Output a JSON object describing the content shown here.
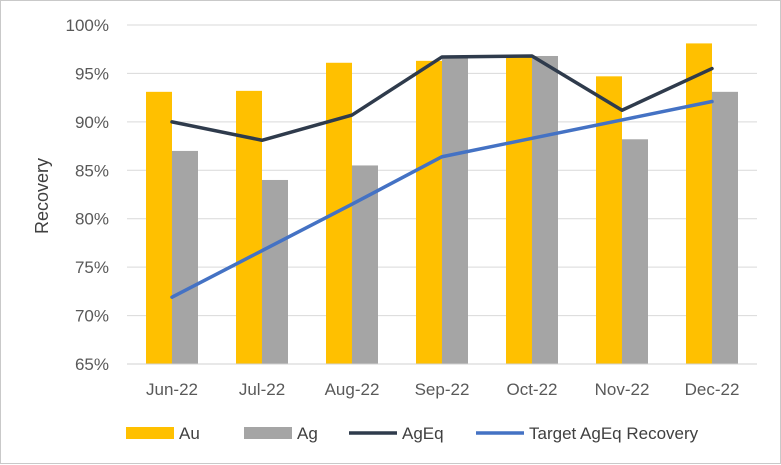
{
  "chart_data": {
    "type": "bar",
    "ylabel": "Recovery",
    "ylim": [
      65,
      100
    ],
    "y_ticks": [
      65,
      70,
      75,
      80,
      85,
      90,
      95,
      100
    ],
    "y_tick_labels": [
      "65%",
      "70%",
      "75%",
      "80%",
      "85%",
      "90%",
      "95%",
      "100%"
    ],
    "categories": [
      "Jun-22",
      "Jul-22",
      "Aug-22",
      "Sep-22",
      "Oct-22",
      "Nov-22",
      "Dec-22"
    ],
    "series": [
      {
        "name": "Au",
        "type": "bar",
        "color": "#FFC000",
        "values": [
          93.1,
          93.2,
          96.1,
          96.3,
          96.8,
          94.7,
          98.1
        ]
      },
      {
        "name": "Ag",
        "type": "bar",
        "color": "#A5A5A5",
        "values": [
          87.0,
          84.0,
          85.5,
          96.6,
          96.8,
          88.2,
          93.1
        ]
      },
      {
        "name": "AgEq",
        "type": "line",
        "color": "#2F3B4C",
        "values": [
          90.0,
          88.1,
          90.7,
          96.7,
          96.8,
          91.2,
          95.5
        ]
      },
      {
        "name": "Target AgEq Recovery",
        "type": "line",
        "color": "#4472C4",
        "values": [
          71.9,
          76.7,
          81.5,
          86.4,
          88.3,
          90.2,
          92.1
        ]
      }
    ],
    "grid": "horizontal",
    "legend": "bottom"
  }
}
